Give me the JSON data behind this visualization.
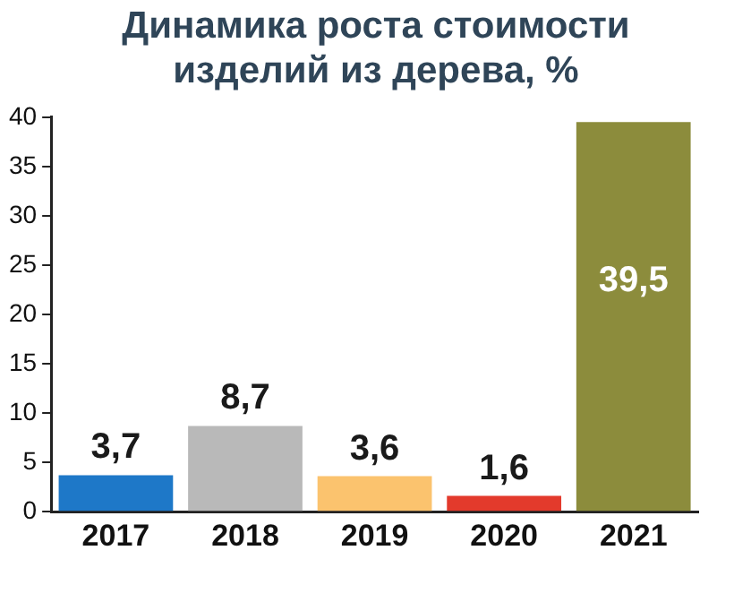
{
  "chart_data": {
    "type": "bar",
    "title": "Динамика роста стоимости изделий из дерева, %",
    "categories": [
      "2017",
      "2018",
      "2019",
      "2020",
      "2021"
    ],
    "values": [
      3.7,
      8.7,
      3.6,
      1.6,
      39.5
    ],
    "colors": [
      "#1e78c8",
      "#b9b9b9",
      "#fbc36e",
      "#e33a2c",
      "#8c8c3c"
    ],
    "value_labels": [
      "3,7",
      "8,7",
      "3,6",
      "1,6",
      "39,5"
    ],
    "ylim": [
      0,
      40
    ],
    "yticks": [
      0,
      5,
      10,
      15,
      20,
      25,
      30,
      35,
      40
    ],
    "grid": false,
    "legend": false
  }
}
